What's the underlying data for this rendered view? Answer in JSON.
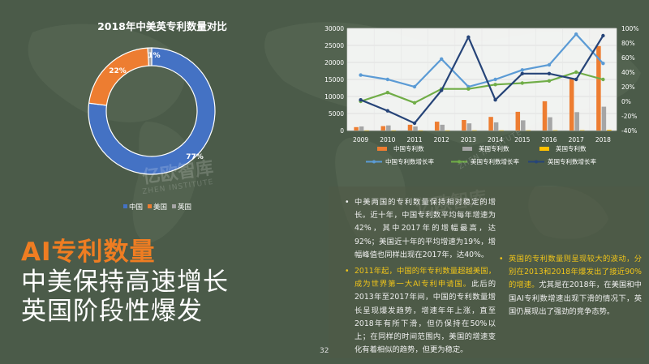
{
  "page_number": "32",
  "title": {
    "line1": "AI专利数量",
    "line2": "中美保持高速增长",
    "line3": "英国阶段性爆发"
  },
  "watermark": {
    "text": "亿欧智库",
    "sub": "ZHEN INSTITUTE"
  },
  "text_panel": {
    "p1": "中美两国的专利数量保持相对稳定的增长。近十年，中国专利数平均每年增速为42%，其中2017年的增幅最高，达92%；美国近十年的平均增速为19%，增幅峰值也同样出现在2017年，达40%。",
    "p2_highlight": "2011年起，中国的年专利数量超越美国，成为世界第一大AI专利申请国。",
    "p2_rest": "此后的2013年至2017年间，中国的专利数量增长呈现爆发趋势，增速年年上涨，直至2018年有所下滑，但仍保持在50%以上；在同样的时间范围内，美国的增速变化有着相似的趋势，但更为稳定。",
    "p3_highlight": "英国的专利数量则呈现较大的波动，分别在2013和2018年爆发出了接近90%的增速。",
    "p3_rest": "尤其是在2018年，在美国和中国AI专利数增速出现下滑的情况下，英国仍展现出了强劲的竞争态势。"
  },
  "colors": {
    "china": "#4472c4",
    "usa": "#ed7d31",
    "uk": "#a5a5a5",
    "china_bar": "#ed7d31",
    "usa_bar": "#a5a5a5",
    "uk_bar": "#ffc000",
    "china_rate": "#5b9bd5",
    "usa_rate": "#70ad47",
    "uk_rate": "#264478",
    "highlight": "#f0c419",
    "title_orange": "#ef7d22"
  },
  "chart_data": [
    {
      "type": "pie",
      "title": "2018年中美英专利数量对比",
      "labels": [
        "中国",
        "美国",
        "英国"
      ],
      "values": [
        77,
        22,
        1
      ],
      "value_labels": [
        "77%",
        "22%",
        "1%"
      ],
      "legend": [
        "中国",
        "美国",
        "英国"
      ],
      "legend_position": "bottom"
    },
    {
      "type": "bar",
      "categories": [
        "2009",
        "2010",
        "2011",
        "2012",
        "2013",
        "2014",
        "2015",
        "2016",
        "2017",
        "2018"
      ],
      "series": [
        {
          "name": "中国专利数",
          "kind": "bar",
          "axis": "left",
          "values": [
            1000,
            1300,
            1700,
            2600,
            3100,
            4000,
            5500,
            8600,
            15300,
            24800
          ]
        },
        {
          "name": "美国专利数",
          "kind": "bar",
          "axis": "left",
          "values": [
            1200,
            1500,
            1200,
            1700,
            2100,
            2400,
            3000,
            3900,
            5400,
            7000
          ]
        },
        {
          "name": "英国专利数",
          "kind": "bar",
          "axis": "left",
          "values": [
            30,
            30,
            30,
            40,
            70,
            60,
            80,
            90,
            120,
            230
          ]
        },
        {
          "name": "中国专利数增长率",
          "kind": "line",
          "axis": "right",
          "values": [
            36,
            30,
            20,
            58,
            20,
            30,
            43,
            50,
            92,
            52
          ]
        },
        {
          "name": "美国专利数增长率",
          "kind": "line",
          "axis": "right",
          "values": [
            0,
            12,
            -2,
            17,
            17,
            23,
            25,
            28,
            40,
            30
          ]
        },
        {
          "name": "英国专利数增长率",
          "kind": "line",
          "axis": "right",
          "values": [
            2,
            -13,
            -30,
            15,
            88,
            2,
            38,
            38,
            30,
            90
          ]
        }
      ],
      "ylim": [
        0,
        30000
      ],
      "yticks": [
        "0",
        "5000",
        "10000",
        "15000",
        "20000",
        "25000",
        "30000"
      ],
      "y2lim": [
        -40,
        100
      ],
      "y2ticks": [
        "-40%",
        "-20%",
        "0%",
        "20%",
        "40%",
        "60%",
        "80%",
        "100%"
      ],
      "grid": true,
      "legend_position": "bottom"
    }
  ]
}
